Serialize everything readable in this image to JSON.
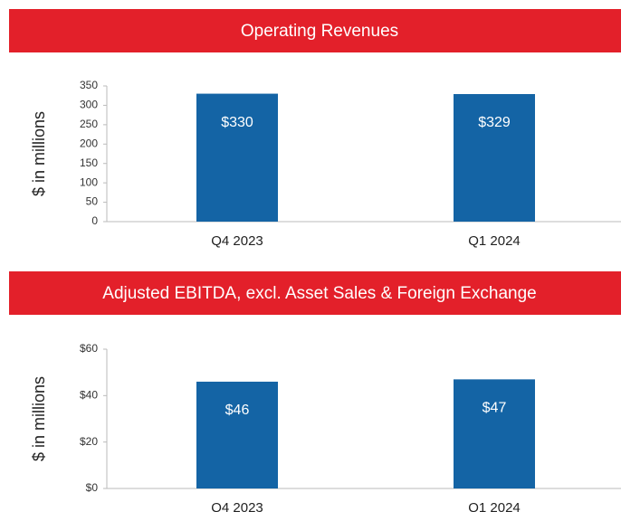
{
  "chart_data": [
    {
      "type": "bar",
      "title": "Operating Revenues",
      "ylabel": "$ in millions",
      "categories": [
        "Q4 2023",
        "Q1 2024"
      ],
      "values": [
        330,
        329
      ],
      "value_labels": [
        "$330",
        "$329"
      ],
      "color": "#1464a5",
      "header_color": "#e3202a",
      "ylim": [
        0,
        350
      ],
      "yticks": [
        0,
        50,
        100,
        150,
        200,
        250,
        300,
        350
      ]
    },
    {
      "type": "bar",
      "title": "Adjusted EBITDA, excl. Asset Sales & Foreign Exchange",
      "ylabel": "$ in millions",
      "categories": [
        "Q4 2023",
        "Q1 2024"
      ],
      "values": [
        46,
        47
      ],
      "value_labels": [
        "$46",
        "$47"
      ],
      "color": "#1464a5",
      "header_color": "#e3202a",
      "ylim": [
        0,
        60
      ],
      "yticks": [
        {
          "value": 0,
          "label": "$0"
        },
        {
          "value": 20,
          "label": "$20"
        },
        {
          "value": 40,
          "label": "$40"
        },
        {
          "value": 60,
          "label": "$60"
        }
      ]
    }
  ]
}
